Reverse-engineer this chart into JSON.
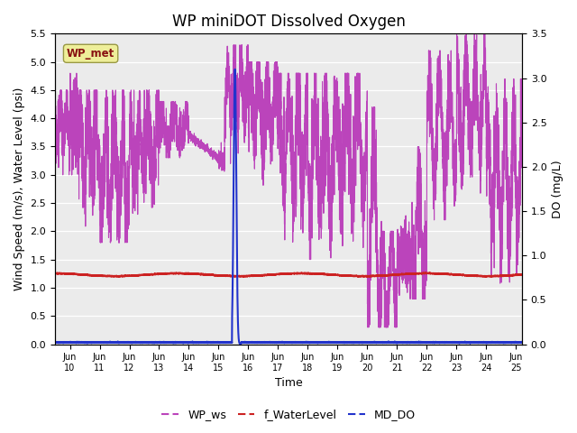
{
  "title": "WP miniDOT Dissolved Oxygen",
  "xlabel": "Time",
  "ylabel_left": "Wind Speed (m/s), Water Level (psi)",
  "ylabel_right": "DO (mg/L)",
  "xlim_days": [
    9.5,
    25.2
  ],
  "ylim_left": [
    0.0,
    5.5
  ],
  "ylim_right": [
    0.0,
    3.5
  ],
  "yticks_left": [
    0.0,
    0.5,
    1.0,
    1.5,
    2.0,
    2.5,
    3.0,
    3.5,
    4.0,
    4.5,
    5.0,
    5.5
  ],
  "yticks_right": [
    0.0,
    0.5,
    1.0,
    1.5,
    2.0,
    2.5,
    3.0,
    3.5
  ],
  "xtick_positions": [
    10,
    11,
    12,
    13,
    14,
    15,
    16,
    17,
    18,
    19,
    20,
    21,
    22,
    23,
    24,
    25
  ],
  "xtick_labels": [
    "Jun\n10",
    "Jun\n11",
    "Jun\n12",
    "Jun\n13",
    "Jun\n14",
    "Jun\n15",
    "Jun\n16",
    "Jun\n17",
    "Jun\n18",
    "Jun\n19",
    "Jun\n20",
    "Jun\n21",
    "Jun\n22",
    "Jun\n23",
    "Jun\n24",
    "Jun\n25"
  ],
  "wp_ws_color": "#BB44BB",
  "f_wl_color": "#CC2222",
  "md_do_color": "#2233CC",
  "bg_color": "#EBEBEB",
  "grid_color": "#FFFFFF",
  "legend_box_facecolor": "#EEEE99",
  "legend_box_edgecolor": "#999944",
  "legend_box_text": "WP_met",
  "legend_box_text_color": "#881111",
  "title_fontsize": 12,
  "axis_label_fontsize": 9,
  "tick_fontsize": 8
}
